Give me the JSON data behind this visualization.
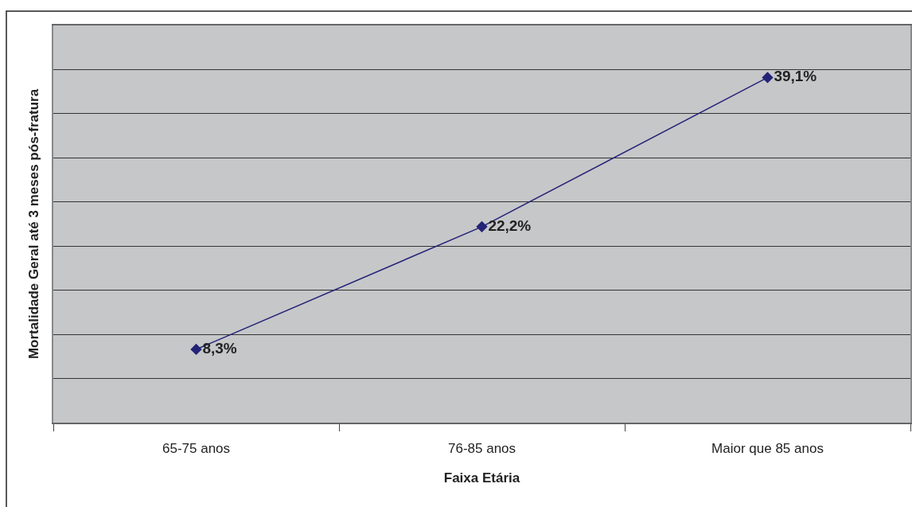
{
  "chart_data": {
    "type": "line",
    "xlabel": "Faixa Etária",
    "ylabel": "Mortalidade Geral até 3 meses pós-fratura",
    "categories": [
      "65-75 anos",
      "76-85 anos",
      "Maior que 85 anos"
    ],
    "values": [
      8.3,
      22.2,
      39.1
    ],
    "color": "#232377",
    "value_labels": [
      "8,3%",
      "22,2%",
      "39,1%"
    ],
    "ylim": [
      0,
      45
    ],
    "yticks": [
      {
        "value": 0,
        "label": null
      },
      {
        "value": 5,
        "label": null
      },
      {
        "value": 10,
        "label": null
      },
      {
        "value": 15,
        "label": null
      },
      {
        "value": 20,
        "label": null
      },
      {
        "value": 25,
        "label": null
      },
      {
        "value": 30,
        "label": null
      },
      {
        "value": 35,
        "label": null
      },
      {
        "value": 40,
        "label": null
      },
      {
        "value": 45,
        "label": null
      }
    ],
    "grid": "y",
    "tick_labels": "x",
    "marker": "diamond",
    "line_style": "solid"
  }
}
